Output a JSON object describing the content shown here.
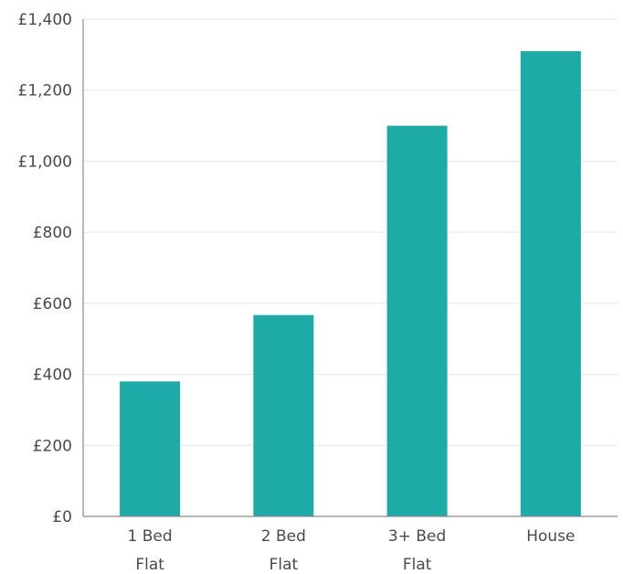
{
  "chart_data": {
    "type": "bar",
    "title": "",
    "xlabel": "",
    "ylabel": "",
    "categories": [
      [
        "1 Bed",
        "Flat"
      ],
      [
        "2 Bed",
        "Flat"
      ],
      [
        "3+ Bed",
        "Flat"
      ],
      [
        "House"
      ]
    ],
    "values": [
      380,
      567,
      1100,
      1310
    ],
    "ylim": [
      0,
      1400
    ],
    "yticks": [
      0,
      200,
      400,
      600,
      800,
      1000,
      1200,
      1400
    ],
    "ytick_labels": [
      "£0",
      "£200",
      "£400",
      "£600",
      "£800",
      "£1,000",
      "£1,200",
      "£1,400"
    ],
    "grid": true,
    "bar_color": "#1eaaa7"
  }
}
